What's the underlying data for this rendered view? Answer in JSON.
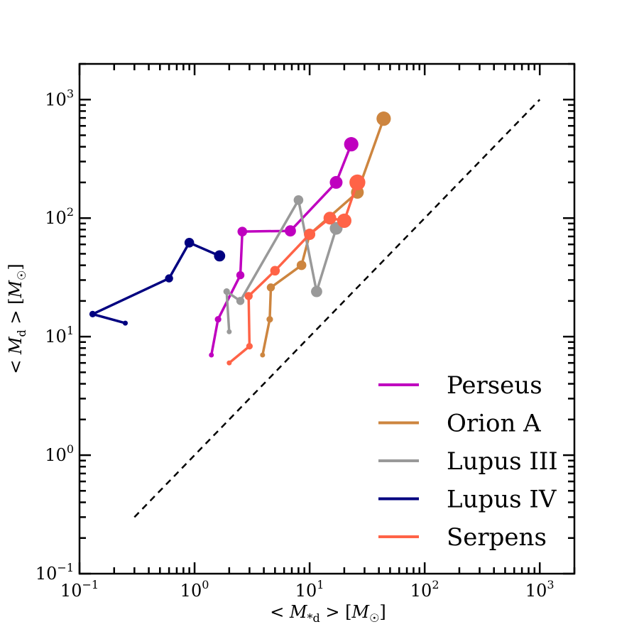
{
  "chart_data": {
    "type": "line",
    "xscale": "log",
    "yscale": "log",
    "xlim": [
      0.1,
      2000
    ],
    "ylim": [
      0.1,
      2000
    ],
    "xlabel": "< M*d > [M☉]",
    "ylabel": "< Md > [M☉]",
    "xticks": [
      0.1,
      1,
      10,
      100,
      1000
    ],
    "yticks": [
      0.1,
      1,
      10,
      100,
      1000
    ],
    "xtick_labels": [
      {
        "base": "10",
        "exp": "−1"
      },
      {
        "base": "10",
        "exp": "0"
      },
      {
        "base": "10",
        "exp": "1"
      },
      {
        "base": "10",
        "exp": "2"
      },
      {
        "base": "10",
        "exp": "3"
      }
    ],
    "ytick_labels": [
      {
        "base": "10",
        "exp": "−1"
      },
      {
        "base": "10",
        "exp": "0"
      },
      {
        "base": "10",
        "exp": "1"
      },
      {
        "base": "10",
        "exp": "2"
      },
      {
        "base": "10",
        "exp": "3"
      }
    ],
    "reference_line": {
      "style": "dashed",
      "color": "#000000",
      "x": [
        0.3,
        1000
      ],
      "y": [
        0.3,
        1000
      ]
    },
    "legend_position": "lower-right",
    "series": [
      {
        "name": "Perseus",
        "color": "#bf00bf",
        "x": [
          1.4,
          1.6,
          2.5,
          2.6,
          6.8,
          17,
          23
        ],
        "y": [
          7,
          14,
          33,
          77,
          78,
          200,
          420
        ],
        "marker_scale": [
          1,
          2,
          3,
          4,
          5,
          6,
          7
        ]
      },
      {
        "name": "Orion A",
        "color": "#cd853f",
        "x": [
          3.9,
          4.5,
          4.6,
          8.5,
          10,
          26,
          44
        ],
        "y": [
          7,
          14,
          26,
          40,
          73,
          165,
          690
        ],
        "marker_scale": [
          1,
          2,
          3,
          4,
          5,
          6,
          7
        ]
      },
      {
        "name": "Lupus III",
        "color": "#999999",
        "x": [
          2.0,
          1.9,
          2.5,
          8.0,
          11.5,
          17
        ],
        "y": [
          11,
          24,
          20,
          142,
          24,
          82
        ],
        "marker_scale": [
          1,
          2,
          3,
          4,
          5,
          6
        ]
      },
      {
        "name": "Lupus IV",
        "color": "#000080",
        "x": [
          0.25,
          0.13,
          0.6,
          0.9,
          1.65
        ],
        "y": [
          13,
          15.5,
          31,
          62,
          48
        ],
        "marker_scale": [
          1,
          2,
          3,
          4,
          5
        ]
      },
      {
        "name": "Serpens",
        "color": "#ff6347",
        "x": [
          2.0,
          3.0,
          2.95,
          5.0,
          10,
          15,
          20,
          26
        ],
        "y": [
          6,
          8.3,
          22,
          36,
          73,
          100,
          95,
          200
        ],
        "marker_scale": [
          1,
          2,
          3,
          4,
          5,
          6,
          7,
          8
        ]
      }
    ]
  }
}
